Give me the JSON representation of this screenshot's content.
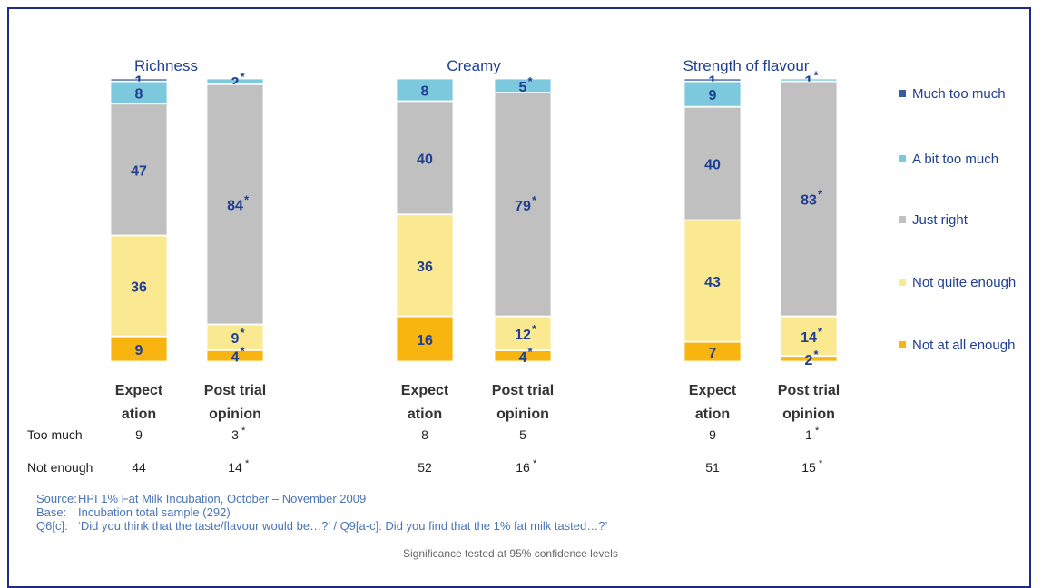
{
  "chart_data": {
    "type": "bar",
    "stacked": true,
    "percent": true,
    "series_order": [
      "Much too much",
      "A bit too much",
      "Just right",
      "Not quite enough",
      "Not at all enough"
    ],
    "colors": {
      "Much too much": "#3a5aa5",
      "A bit too much": "#7cc8dc",
      "Just right": "#c0c0c0",
      "Not quite enough": "#fbe992",
      "Not at all enough": "#f8b510"
    },
    "groups": [
      {
        "title": "Richness",
        "bars": [
          {
            "label": "Expect ation",
            "values": [
              1,
              8,
              47,
              36,
              9
            ],
            "labels": [
              "1",
              "8",
              "47",
              "36",
              "9"
            ],
            "sig": [
              false,
              false,
              false,
              false,
              false
            ]
          },
          {
            "label": "Post trial opinion",
            "values": [
              0,
              2,
              84,
              9,
              4
            ],
            "labels": [
              "",
              "2",
              "84",
              "9",
              "4"
            ],
            "sig": [
              false,
              true,
              true,
              true,
              true
            ]
          }
        ]
      },
      {
        "title": "Creamy",
        "bars": [
          {
            "label": "Expect ation",
            "values": [
              0,
              8,
              40,
              36,
              16
            ],
            "labels": [
              "",
              "8",
              "40",
              "36",
              "16"
            ],
            "sig": [
              false,
              false,
              false,
              false,
              false
            ]
          },
          {
            "label": "Post trial opinion",
            "values": [
              0,
              5,
              79,
              12,
              4
            ],
            "labels": [
              "",
              "5",
              "79",
              "12",
              "4"
            ],
            "sig": [
              false,
              true,
              true,
              true,
              true
            ]
          }
        ]
      },
      {
        "title": "Strength of flavour",
        "bars": [
          {
            "label": "Expect ation",
            "values": [
              1,
              9,
              40,
              43,
              7
            ],
            "labels": [
              "1",
              "9",
              "40",
              "43",
              "7"
            ],
            "sig": [
              false,
              false,
              false,
              false,
              false
            ]
          },
          {
            "label": "Post trial opinion",
            "values": [
              0,
              1,
              83,
              14,
              2
            ],
            "labels": [
              "",
              "1",
              "83",
              "14",
              "2"
            ],
            "sig": [
              false,
              true,
              true,
              true,
              true
            ]
          }
        ]
      }
    ],
    "summary_rows": [
      {
        "label": "Too much",
        "values": [
          "9",
          "3",
          "8",
          "5",
          "9",
          "1"
        ],
        "sig": [
          false,
          true,
          false,
          false,
          false,
          true
        ]
      },
      {
        "label": "Not enough",
        "values": [
          "44",
          "14",
          "52",
          "16",
          "51",
          "15"
        ],
        "sig": [
          false,
          true,
          false,
          true,
          false,
          true
        ]
      }
    ],
    "legend": {
      "position": "right"
    },
    "significance_mark": "*"
  },
  "footnotes": [
    {
      "key": "Source:",
      "text": "HPI 1% Fat Milk Incubation, October – November 2009"
    },
    {
      "key": "Base:",
      "text": "Incubation total sample (292)"
    },
    {
      "key": "Q6[c]:",
      "text": "‘Did you think that the taste/flavour would be…?’ / Q9[a-c]: Did you find that the 1% fat milk tasted…?’"
    }
  ],
  "significance_note": "Significance tested at 95% confidence levels"
}
